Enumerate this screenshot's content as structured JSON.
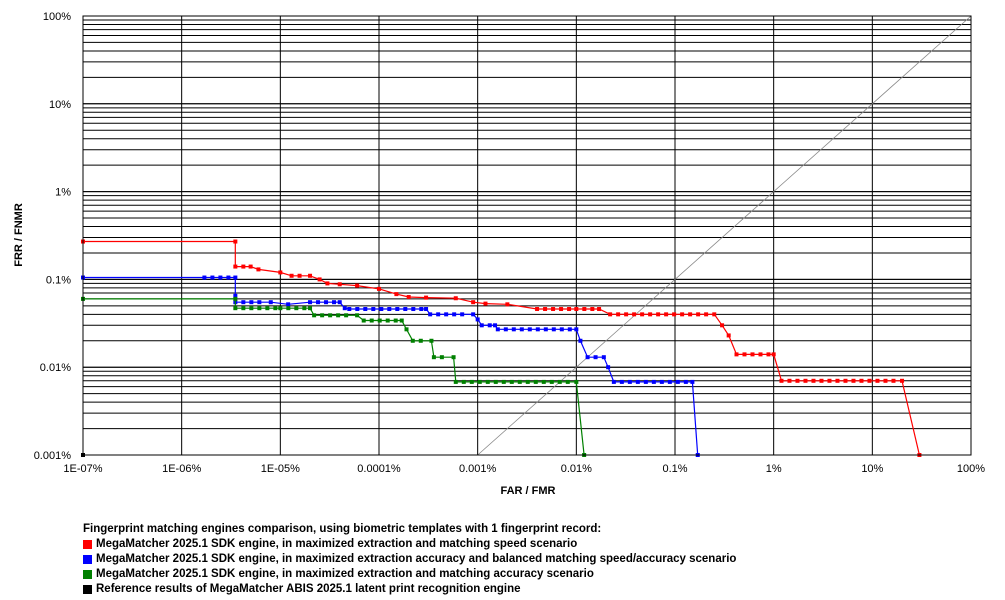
{
  "chart_data": {
    "type": "line",
    "xlabel": "FAR / FMR",
    "ylabel": "FRR / FNMR",
    "x_scale": "log",
    "y_scale": "log",
    "xlim": [
      1e-09,
      1
    ],
    "ylim": [
      1e-05,
      1
    ],
    "grid": true,
    "x_ticks": [
      {
        "v": 1e-09,
        "label": "1E-07%"
      },
      {
        "v": 1e-08,
        "label": "1E-06%"
      },
      {
        "v": 1e-07,
        "label": "1E-05%"
      },
      {
        "v": 1e-06,
        "label": "0.0001%"
      },
      {
        "v": 1e-05,
        "label": "0.001%"
      },
      {
        "v": 0.0001,
        "label": "0.01%"
      },
      {
        "v": 0.001,
        "label": "0.1%"
      },
      {
        "v": 0.01,
        "label": "1%"
      },
      {
        "v": 0.1,
        "label": "10%"
      },
      {
        "v": 1,
        "label": "100%"
      }
    ],
    "y_ticks": [
      {
        "v": 1e-05,
        "label": "0.001%"
      },
      {
        "v": 0.0001,
        "label": "0.01%"
      },
      {
        "v": 0.001,
        "label": "0.1%"
      },
      {
        "v": 0.01,
        "label": "1%"
      },
      {
        "v": 0.1,
        "label": "10%"
      },
      {
        "v": 1,
        "label": "100%"
      }
    ],
    "reference_line": {
      "from": [
        1e-05,
        1e-05
      ],
      "to": [
        1,
        1
      ],
      "color": "#888888"
    },
    "legend_title": "Fingerprint matching engines comparison, using biometric templates with 1 fingerprint record:",
    "series": [
      {
        "name": "MegaMatcher 2025.1 SDK engine, in maximized extraction and matching speed scenario",
        "color": "#ff0000",
        "points": [
          [
            1e-09,
            0.0027
          ],
          [
            3.5e-08,
            0.0027
          ],
          [
            3.5e-08,
            0.0014
          ],
          [
            5e-08,
            0.0014
          ],
          [
            6e-08,
            0.0013
          ],
          [
            1e-07,
            0.0012
          ],
          [
            1.3e-07,
            0.0011
          ],
          [
            2e-07,
            0.0011
          ],
          [
            2.5e-07,
            0.001
          ],
          [
            3e-07,
            0.0009
          ],
          [
            4e-07,
            0.00088
          ],
          [
            6e-07,
            0.00085
          ],
          [
            1e-06,
            0.00078
          ],
          [
            1.5e-06,
            0.00068
          ],
          [
            2e-06,
            0.00063
          ],
          [
            3e-06,
            0.00062
          ],
          [
            6e-06,
            0.00061
          ],
          [
            9e-06,
            0.00055
          ],
          [
            1.2e-05,
            0.00053
          ],
          [
            2e-05,
            0.00052
          ],
          [
            4e-05,
            0.00046
          ],
          [
            0.0001,
            0.00046
          ],
          [
            0.00017,
            0.00046
          ],
          [
            0.00022,
            0.0004
          ],
          [
            0.0025,
            0.0004
          ],
          [
            0.003,
            0.0003
          ],
          [
            0.0035,
            0.00023
          ],
          [
            0.0042,
            0.00014
          ],
          [
            0.01,
            0.00014
          ],
          [
            0.012,
            7e-05
          ],
          [
            0.2,
            7e-05
          ],
          [
            0.3,
            1e-05
          ]
        ]
      },
      {
        "name": "MegaMatcher 2025.1 SDK engine, in maximized extraction accuracy and balanced matching speed/accuracy scenario",
        "color": "#0000ff",
        "points": [
          [
            1e-09,
            0.00105
          ],
          [
            1.7e-08,
            0.00105
          ],
          [
            3.5e-08,
            0.00105
          ],
          [
            3.5e-08,
            0.00065
          ],
          [
            3.5e-08,
            0.00055
          ],
          [
            8e-08,
            0.00055
          ],
          [
            1.2e-07,
            0.00052
          ],
          [
            2e-07,
            0.00055
          ],
          [
            4e-07,
            0.00055
          ],
          [
            4.5e-07,
            0.00047
          ],
          [
            5e-07,
            0.00046
          ],
          [
            3e-06,
            0.00046
          ],
          [
            3.3e-06,
            0.0004
          ],
          [
            9e-06,
            0.0004
          ],
          [
            1e-05,
            0.00035
          ],
          [
            1.1e-05,
            0.0003
          ],
          [
            1.5e-05,
            0.0003
          ],
          [
            1.6e-05,
            0.00027
          ],
          [
            0.0001,
            0.00027
          ],
          [
            0.00011,
            0.0002
          ],
          [
            0.00013,
            0.00013
          ],
          [
            0.00019,
            0.00013
          ],
          [
            0.00021,
            0.0001
          ],
          [
            0.00024,
            6.8e-05
          ],
          [
            0.0015,
            6.8e-05
          ],
          [
            0.0017,
            1e-05
          ]
        ]
      },
      {
        "name": "MegaMatcher 2025.1 SDK engine, in maximized extraction and matching accuracy scenario",
        "color": "#008000",
        "points": [
          [
            1e-09,
            0.0006
          ],
          [
            3.5e-08,
            0.0006
          ],
          [
            3.5e-08,
            0.00047
          ],
          [
            1e-07,
            0.00047
          ],
          [
            2e-07,
            0.00047
          ],
          [
            2.2e-07,
            0.00039
          ],
          [
            6e-07,
            0.00039
          ],
          [
            7e-07,
            0.00034
          ],
          [
            1.7e-06,
            0.00034
          ],
          [
            1.9e-06,
            0.00027
          ],
          [
            2.2e-06,
            0.0002
          ],
          [
            3.4e-06,
            0.0002
          ],
          [
            3.6e-06,
            0.00013
          ],
          [
            5.7e-06,
            0.00013
          ],
          [
            6e-06,
            6.8e-05
          ],
          [
            0.0001,
            6.8e-05
          ],
          [
            0.00012,
            1e-05
          ]
        ]
      },
      {
        "name": "Reference results of MegaMatcher ABIS 2025.1 latent print recognition engine",
        "color": "#000000",
        "points": [
          [
            1e-09,
            1e-05
          ]
        ]
      }
    ]
  }
}
